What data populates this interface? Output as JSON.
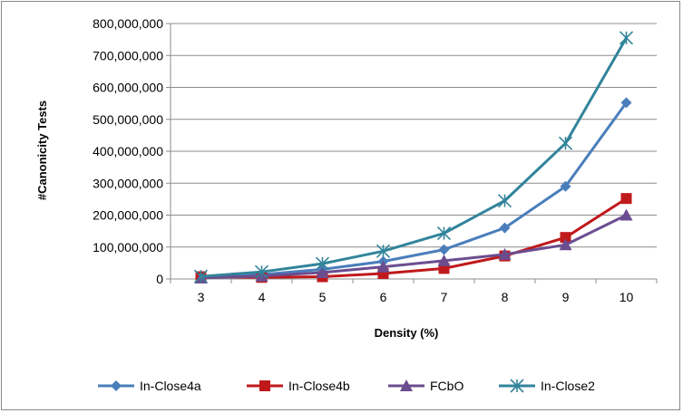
{
  "chart_data": {
    "type": "line",
    "title": "",
    "xlabel": "Density (%)",
    "ylabel": "#Canonicity Tests",
    "categories": [
      "3",
      "4",
      "5",
      "6",
      "7",
      "8",
      "9",
      "10"
    ],
    "ylim": [
      0,
      800000000
    ],
    "yticks": [
      0,
      100000000,
      200000000,
      300000000,
      400000000,
      500000000,
      600000000,
      700000000,
      800000000
    ],
    "ytick_labels": [
      "0",
      "100,000,000",
      "200,000,000",
      "300,000,000",
      "400,000,000",
      "500,000,000",
      "600,000,000",
      "700,000,000",
      "800,000,000"
    ],
    "grid": "horizontal",
    "legend_position": "bottom",
    "series": [
      {
        "name": "In-Close4a",
        "color": "#4a7ebb",
        "marker": "diamond",
        "values": [
          6000000,
          14000000,
          30000000,
          55000000,
          92000000,
          160000000,
          290000000,
          552000000
        ]
      },
      {
        "name": "In-Close4b",
        "color": "#c0191b",
        "marker": "square",
        "values": [
          7000000,
          5000000,
          7000000,
          17000000,
          33000000,
          72000000,
          130000000,
          252000000
        ]
      },
      {
        "name": "FCbO",
        "color": "#6b4d8f",
        "marker": "triangle",
        "values": [
          3000000,
          9000000,
          20000000,
          38000000,
          57000000,
          77000000,
          107000000,
          200000000
        ]
      },
      {
        "name": "In-Close2",
        "color": "#31849b",
        "marker": "star",
        "values": [
          8000000,
          22000000,
          48000000,
          87000000,
          143000000,
          245000000,
          425000000,
          755000000
        ]
      }
    ]
  }
}
